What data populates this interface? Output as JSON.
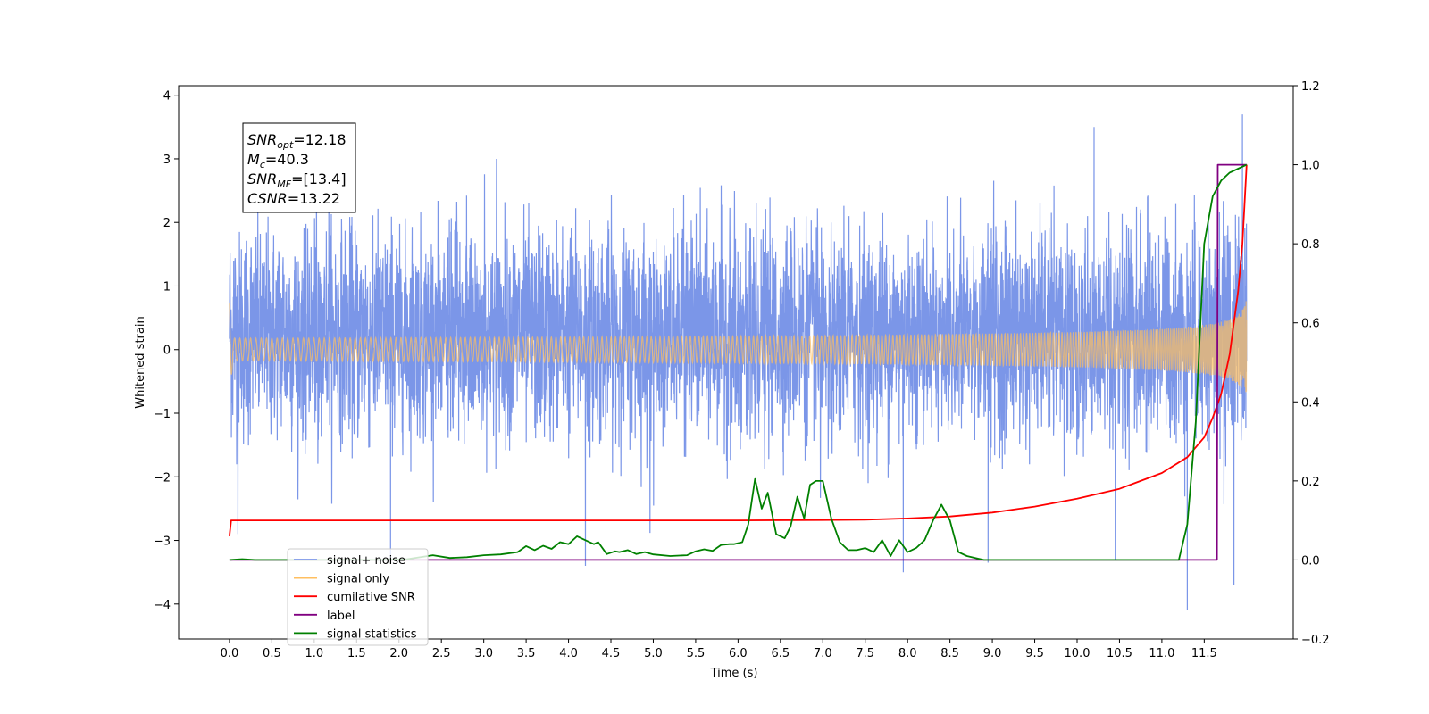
{
  "chart_data": {
    "type": "line",
    "title": "",
    "xlabel": "Time (s)",
    "ylabel": "Whitened strain",
    "xlim": [
      -0.6,
      12.55
    ],
    "ylim": [
      -4.55,
      4.15
    ],
    "y2lim": [
      -0.2,
      1.2
    ],
    "x_ticks": [
      "0.0",
      "0.5",
      "1.0",
      "1.5",
      "2.0",
      "2.5",
      "3.0",
      "3.5",
      "4.0",
      "4.5",
      "5.0",
      "5.5",
      "6.0",
      "6.5",
      "7.0",
      "7.5",
      "8.0",
      "8.5",
      "9.0",
      "9.5",
      "10.0",
      "10.5",
      "11.0",
      "11.5"
    ],
    "y_ticks": [
      "4",
      "3",
      "2",
      "1",
      "0",
      "−1",
      "−2",
      "−3",
      "−4"
    ],
    "y2_ticks": [
      "1.2",
      "1.0",
      "0.8",
      "0.6",
      "0.4",
      "0.2",
      "0.0",
      "−0.2"
    ],
    "grid": false,
    "legend_position": "lower-left",
    "annotation": {
      "lines": [
        {
          "sym": "SNR",
          "sub": "opt",
          "value": "=12.18"
        },
        {
          "sym": "M",
          "sub": "c",
          "value": "=40.3"
        },
        {
          "sym": "SNR",
          "sub": "MF",
          "value": "=[13.4]"
        },
        {
          "sym": "CSNR",
          "sub": "",
          "value": "=13.22"
        }
      ]
    },
    "series": [
      {
        "name": "signal+ noise",
        "color": "#7b96e8",
        "axis": "left",
        "style": "noise",
        "duration": [
          0.0,
          12.0
        ],
        "typical_envelope": [
          -1.9,
          2.6
        ],
        "spikes": [
          [
            0.05,
            1.4
          ],
          [
            0.1,
            -2.9
          ],
          [
            1.9,
            -3.3
          ],
          [
            3.15,
            3.0
          ],
          [
            4.2,
            -3.4
          ],
          [
            7.95,
            -3.5
          ],
          [
            8.95,
            -3.35
          ],
          [
            10.2,
            3.5
          ],
          [
            10.45,
            -3.3
          ],
          [
            11.3,
            -4.1
          ],
          [
            11.85,
            -3.7
          ],
          [
            11.95,
            3.7
          ]
        ]
      },
      {
        "name": "signal only",
        "color": "#ffbf60",
        "axis": "left",
        "style": "chirp",
        "duration": [
          0.0,
          12.0
        ],
        "final_amplitude": 0.8
      },
      {
        "name": "cumilative SNR",
        "color": "#ff0000",
        "axis": "right",
        "x": [
          0.0,
          0.02,
          1.0,
          3.0,
          5.0,
          6.0,
          7.0,
          7.5,
          8.0,
          8.5,
          9.0,
          9.5,
          10.0,
          10.5,
          11.0,
          11.3,
          11.5,
          11.6,
          11.7,
          11.8,
          11.9,
          11.95,
          12.0
        ],
        "y": [
          0.06,
          0.1,
          0.1,
          0.1,
          0.1,
          0.1,
          0.101,
          0.102,
          0.105,
          0.11,
          0.12,
          0.135,
          0.155,
          0.18,
          0.22,
          0.26,
          0.31,
          0.36,
          0.42,
          0.52,
          0.68,
          0.8,
          1.0
        ]
      },
      {
        "name": "label",
        "color": "#800080",
        "axis": "right",
        "x": [
          0.0,
          11.65,
          11.65,
          11.66,
          12.0
        ],
        "y": [
          0.0,
          0.0,
          0.0,
          1.0,
          1.0
        ]
      },
      {
        "name": "signal statistics",
        "color": "#008000",
        "axis": "right",
        "x": [
          0.0,
          0.15,
          0.3,
          0.6,
          0.9,
          1.2,
          1.5,
          1.8,
          2.1,
          2.4,
          2.6,
          2.8,
          3.0,
          3.2,
          3.4,
          3.5,
          3.6,
          3.7,
          3.8,
          3.9,
          4.0,
          4.1,
          4.2,
          4.3,
          4.35,
          4.45,
          4.55,
          4.6,
          4.7,
          4.8,
          4.9,
          5.0,
          5.2,
          5.4,
          5.5,
          5.6,
          5.7,
          5.8,
          5.9,
          5.95,
          6.05,
          6.12,
          6.2,
          6.28,
          6.35,
          6.45,
          6.55,
          6.62,
          6.7,
          6.78,
          6.85,
          6.92,
          7.0,
          7.1,
          7.2,
          7.3,
          7.4,
          7.5,
          7.6,
          7.7,
          7.8,
          7.9,
          8.0,
          8.1,
          8.2,
          8.3,
          8.4,
          8.5,
          8.6,
          8.7,
          8.8,
          8.9,
          9.0,
          9.2,
          9.5,
          10.0,
          10.5,
          11.0,
          11.2,
          11.3,
          11.4,
          11.5,
          11.6,
          11.7,
          11.8,
          11.9,
          12.0
        ],
        "y": [
          0.0,
          0.002,
          0.0,
          0.0,
          0.0,
          0.0,
          0.0,
          0.0,
          0.002,
          0.012,
          0.005,
          0.007,
          0.012,
          0.014,
          0.02,
          0.035,
          0.025,
          0.036,
          0.028,
          0.045,
          0.04,
          0.06,
          0.05,
          0.04,
          0.045,
          0.015,
          0.022,
          0.02,
          0.025,
          0.015,
          0.02,
          0.014,
          0.01,
          0.012,
          0.022,
          0.027,
          0.023,
          0.038,
          0.04,
          0.04,
          0.045,
          0.09,
          0.205,
          0.13,
          0.17,
          0.065,
          0.055,
          0.085,
          0.16,
          0.105,
          0.19,
          0.2,
          0.2,
          0.105,
          0.045,
          0.025,
          0.025,
          0.03,
          0.02,
          0.05,
          0.01,
          0.05,
          0.02,
          0.03,
          0.05,
          0.1,
          0.14,
          0.1,
          0.02,
          0.01,
          0.005,
          0.0,
          0.0,
          0.0,
          0.0,
          0.0,
          0.0,
          0.0,
          0.0,
          0.09,
          0.35,
          0.8,
          0.92,
          0.96,
          0.98,
          0.99,
          1.0
        ]
      }
    ]
  }
}
